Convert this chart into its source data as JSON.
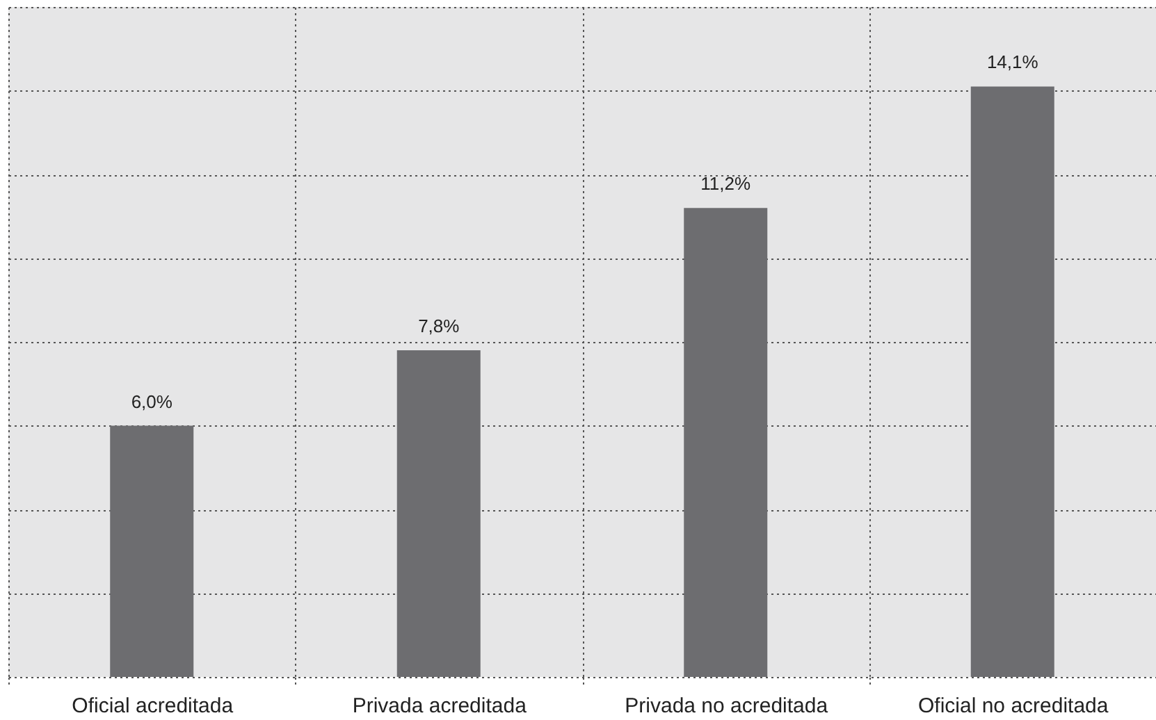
{
  "chart_data": {
    "type": "bar",
    "categories": [
      "Oficial acreditada",
      "Privada acreditada",
      "Privada no acreditada",
      "Oficial no acreditada"
    ],
    "values": [
      6.0,
      7.8,
      11.2,
      14.1
    ],
    "value_labels": [
      "6,0%",
      "7,8%",
      "11,2%",
      "14,1%"
    ],
    "color": "#6d6d70",
    "ylim": [
      0,
      16
    ],
    "yticks": [
      {
        "value": 0,
        "label": null
      },
      {
        "value": 2,
        "label": null
      },
      {
        "value": 4,
        "label": null
      },
      {
        "value": 6,
        "label": null
      },
      {
        "value": 8,
        "label": null
      },
      {
        "value": 10,
        "label": null
      },
      {
        "value": 12,
        "label": null
      },
      {
        "value": 14,
        "label": null
      },
      {
        "value": 16,
        "label": null
      }
    ],
    "grid": true,
    "tick_labels": "x"
  }
}
